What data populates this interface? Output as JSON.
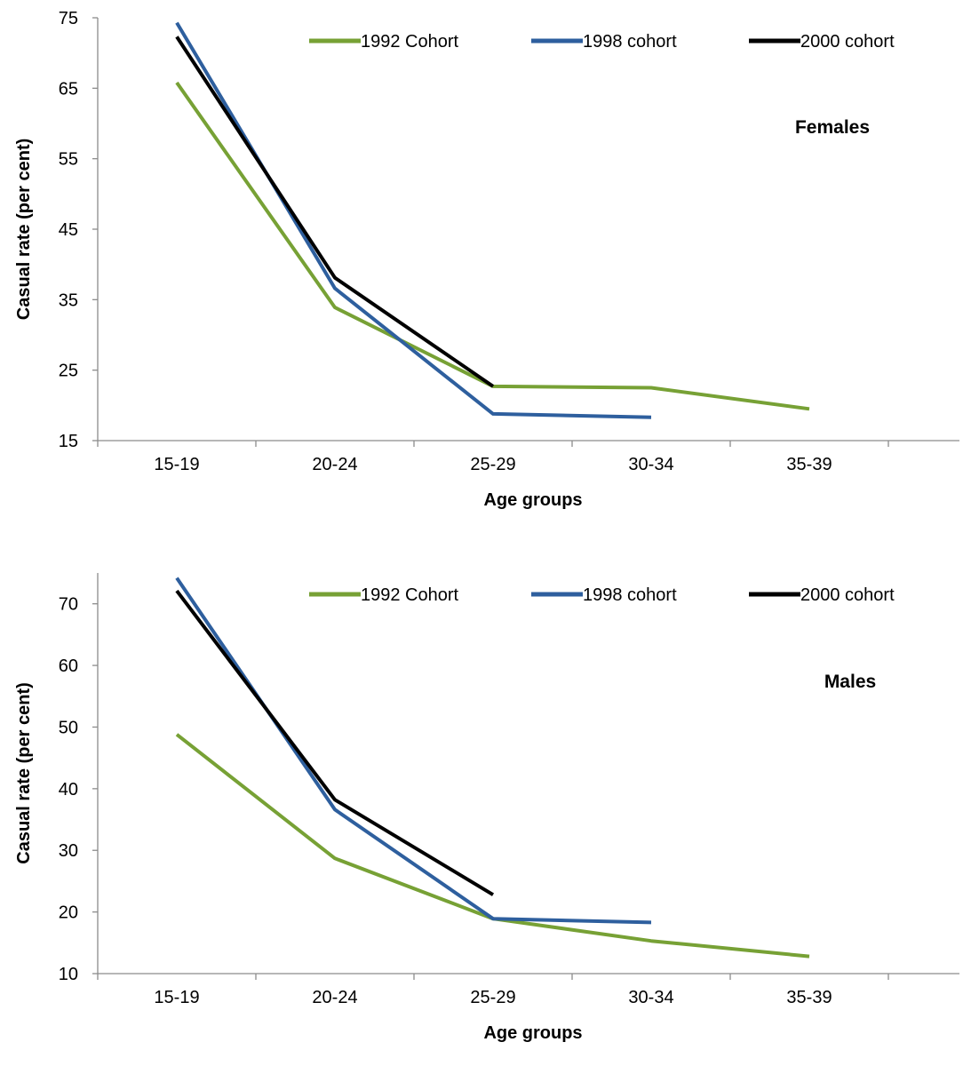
{
  "chart_data": [
    {
      "type": "line",
      "panel_label": "Females",
      "xlabel": "Age groups",
      "ylabel": "Casual rate (per cent)",
      "categories": [
        "15-19",
        "20-24",
        "25-29",
        "30-34",
        "35-39"
      ],
      "ylim": [
        15,
        75
      ],
      "yticks": [
        15,
        25,
        35,
        45,
        55,
        65,
        75
      ],
      "grid": false,
      "legend_position": "top",
      "series": [
        {
          "name": "1992 Cohort",
          "color": "#77a135",
          "values": [
            65.8,
            33.9,
            22.7,
            22.5,
            19.5
          ]
        },
        {
          "name": "1998 cohort",
          "color": "#2e5f9e",
          "values": [
            74.3,
            36.6,
            18.8,
            18.3,
            null
          ]
        },
        {
          "name": "2000 cohort",
          "color": "#000000",
          "values": [
            72.3,
            38.1,
            22.7,
            null,
            null
          ]
        }
      ]
    },
    {
      "type": "line",
      "panel_label": "Males",
      "xlabel": "Age groups",
      "ylabel": "Casual rate (per cent)",
      "categories": [
        "15-19",
        "20-24",
        "25-29",
        "30-34",
        "35-39"
      ],
      "ylim": [
        10,
        75
      ],
      "yticks": [
        10,
        20,
        30,
        40,
        50,
        60,
        70
      ],
      "grid": false,
      "legend_position": "top",
      "series": [
        {
          "name": "1992 Cohort",
          "color": "#77a135",
          "values": [
            48.8,
            28.7,
            18.9,
            15.3,
            12.8
          ]
        },
        {
          "name": "1998 cohort",
          "color": "#2e5f9e",
          "values": [
            74.2,
            36.6,
            18.9,
            18.3,
            null
          ]
        },
        {
          "name": "2000 cohort",
          "color": "#000000",
          "values": [
            72.1,
            38.2,
            22.8,
            null,
            null
          ]
        }
      ]
    }
  ]
}
